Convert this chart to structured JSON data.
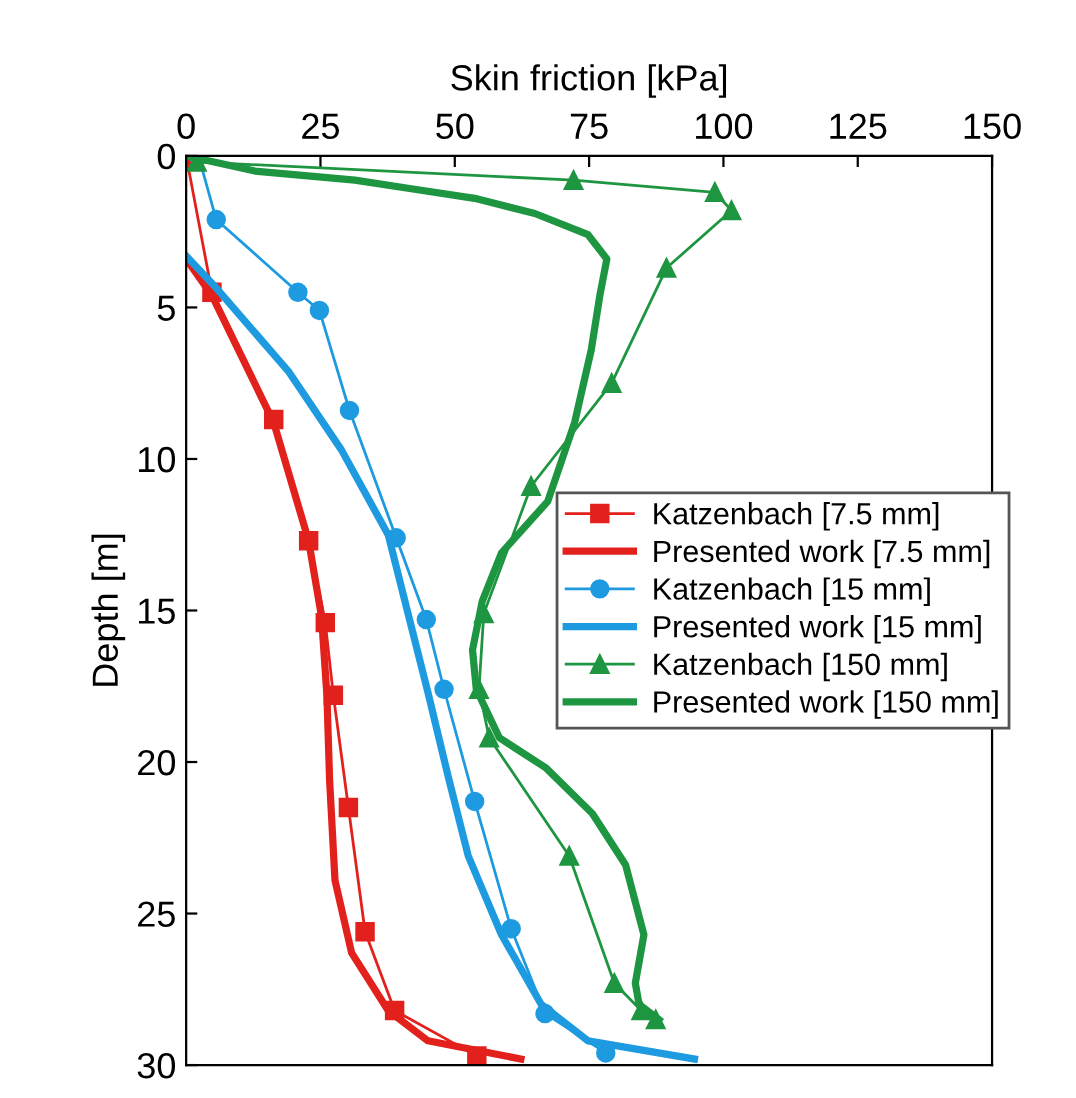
{
  "chart_data": {
    "type": "line",
    "xlabel": "Skin friction [kPa]",
    "ylabel": "Depth [m]",
    "xlim": [
      0,
      150
    ],
    "xticks": [
      0,
      25,
      50,
      75,
      100,
      125,
      150
    ],
    "ylim": [
      30,
      0
    ],
    "yticks": [
      0,
      5,
      10,
      15,
      20,
      25,
      30
    ],
    "grid": false,
    "legend": "right",
    "line_style": "solid",
    "series": [
      {
        "name": "Katzenbach [7.5 mm]",
        "color": "#e3211c",
        "marker": "square",
        "x": [
          0,
          4.8,
          16.3,
          22.8,
          25.9,
          27.4,
          30.2,
          33.3,
          38.8,
          54.1
        ],
        "values": [
          0,
          4.5,
          8.7,
          12.7,
          15.4,
          17.8,
          21.5,
          25.6,
          28.2,
          29.7
        ]
      },
      {
        "name": "Presented work [7.5 mm]",
        "color": "#e3211c",
        "marker": "none",
        "x": [
          0,
          4.8,
          16.3,
          22.8,
          25.2,
          26.2,
          26.7,
          27.7,
          30.8,
          37.6,
          45,
          62.3
        ],
        "values": [
          3.4,
          4.6,
          8.8,
          12.7,
          15.2,
          17.8,
          20.6,
          23.9,
          26.3,
          28.2,
          29.2,
          29.8
        ]
      },
      {
        "name": "Katzenbach [15 mm]",
        "color": "#1e9be0",
        "marker": "circle",
        "x": [
          2.3,
          5.6,
          20.8,
          24.8,
          30.4,
          39.1,
          44.7,
          48.0,
          53.7,
          60.5,
          66.8,
          78.1
        ],
        "values": [
          0,
          2.1,
          4.5,
          5.1,
          8.4,
          12.6,
          15.3,
          17.6,
          21.3,
          25.5,
          28.3,
          29.6
        ]
      },
      {
        "name": "Presented work [15 mm]",
        "color": "#1e9be0",
        "marker": "none",
        "x": [
          0,
          5.3,
          19.0,
          28.9,
          37.6,
          41.3,
          45.0,
          48.8,
          52.5,
          58.7,
          66.1,
          74.8,
          94.6
        ],
        "values": [
          3.3,
          4.3,
          7.1,
          9.7,
          12.5,
          15.1,
          17.7,
          20.5,
          23.1,
          25.7,
          28.0,
          29.2,
          29.8
        ]
      },
      {
        "name": "Katzenbach [150 mm]",
        "color": "#1e9641",
        "marker": "triangle",
        "x": [
          2,
          72.1,
          98.4,
          101.5,
          89.4,
          79.2,
          64.2,
          55.4,
          54.5,
          56.4,
          71.3,
          79.7,
          84.7,
          87.4
        ],
        "values": [
          0.2,
          0.8,
          1.2,
          1.8,
          3.7,
          7.5,
          10.9,
          15.1,
          17.6,
          19.2,
          23.1,
          27.3,
          28.2,
          28.5
        ]
      },
      {
        "name": "Presented work [150 mm]",
        "color": "#1e9641",
        "marker": "none",
        "x": [
          0,
          12.8,
          31.4,
          42.5,
          53.7,
          64.9,
          74.8,
          78.3,
          77.0,
          75.4,
          72.3,
          67.3,
          58.7,
          55.1,
          53.3,
          54.0,
          58.3,
          67,
          75.6,
          81.8,
          85.2,
          83.6,
          84.3,
          88
        ],
        "values": [
          0,
          0.5,
          0.8,
          1.1,
          1.4,
          1.9,
          2.6,
          3.4,
          4.6,
          6.4,
          8.8,
          11.4,
          13.1,
          14.7,
          16.3,
          17.6,
          19.2,
          20.2,
          21.7,
          23.4,
          25.7,
          27.3,
          28.0,
          28.5
        ]
      }
    ]
  }
}
